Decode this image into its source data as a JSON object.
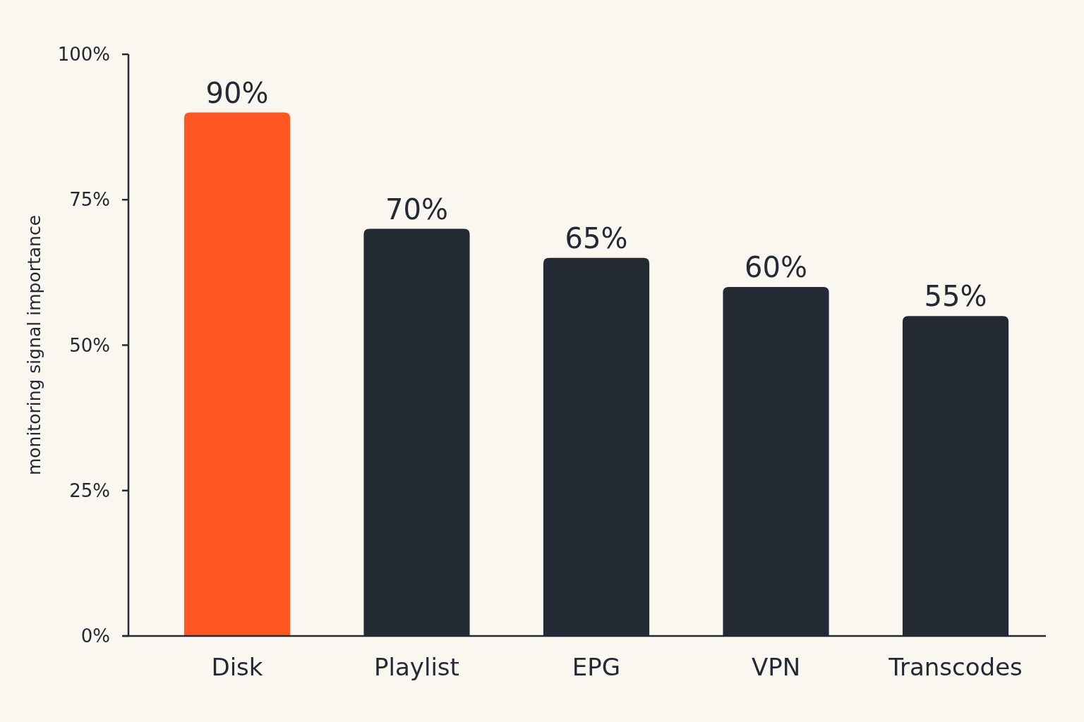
{
  "chart_data": {
    "type": "bar",
    "ylabel": "monitoring signal importance",
    "categories": [
      "Disk",
      "Playlist",
      "EPG",
      "VPN",
      "Transcodes"
    ],
    "values": [
      90,
      70,
      65,
      60,
      55
    ],
    "colors": [
      "#ff5722",
      "#232a33",
      "#232a33",
      "#232a33",
      "#232a33"
    ],
    "ylim": [
      0,
      100
    ],
    "yticks": [
      {
        "value": 0,
        "label": "0%"
      },
      {
        "value": 25,
        "label": "25%"
      },
      {
        "value": 50,
        "label": "50%"
      },
      {
        "value": 75,
        "label": "75%"
      },
      {
        "value": 100,
        "label": "100%"
      }
    ],
    "data_labels": true,
    "value_labels": [
      "90%",
      "70%",
      "65%",
      "60%",
      "55%"
    ],
    "grid": false
  }
}
